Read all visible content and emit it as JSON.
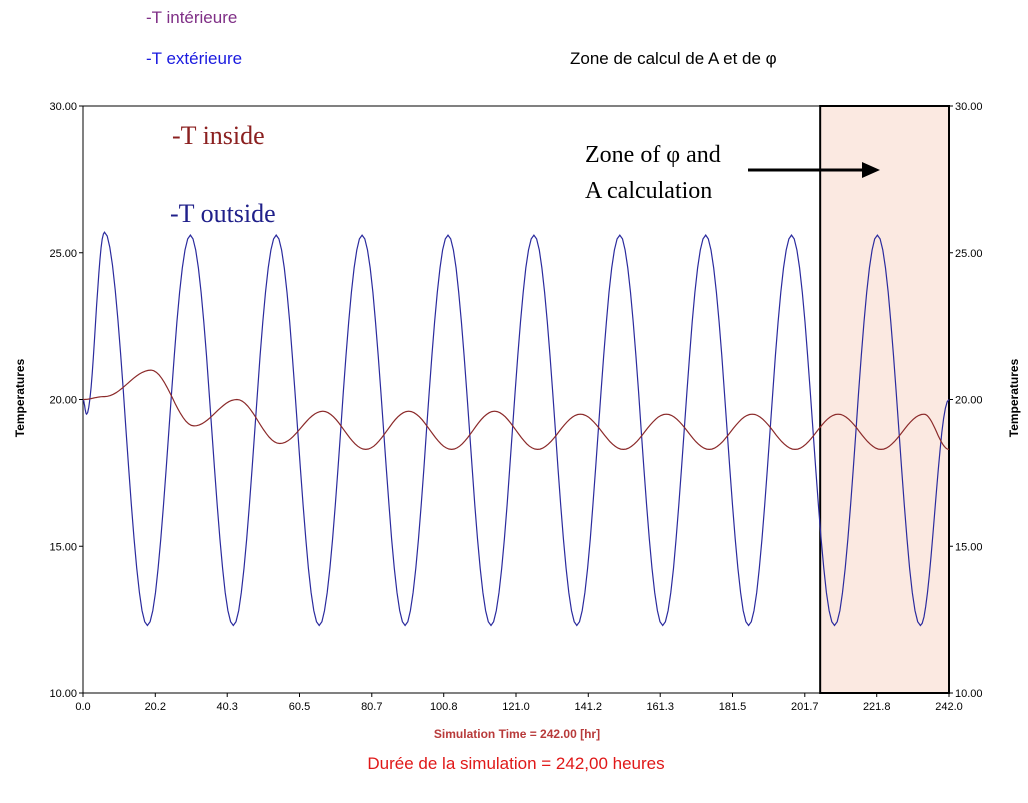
{
  "header": {
    "legend_inside_fr": "-T intérieure",
    "legend_outside_fr": "-T extérieure",
    "zone_label_fr": "Zone de calcul de A et de φ"
  },
  "footer": {
    "duration_fr": "Durée de la simulation = 242,00 heures"
  },
  "colors": {
    "inside": "#8b2a2a",
    "outside": "#2b2b9e",
    "zone_fill": "#fbe9e1",
    "legend_fr_inside": "#7f2f86",
    "legend_fr_outside": "#1a1adf",
    "xlabel": "#b83a3a"
  },
  "chart_data": {
    "type": "line",
    "title": "",
    "xlabel": "Simulation Time = 242.00 [hr]",
    "ylabel": "Temperatures",
    "ylabel_right": "Temperatures",
    "xlim": [
      0,
      242
    ],
    "ylim": [
      10,
      30
    ],
    "x_ticks": [
      "0.0",
      "20.2",
      "40.3",
      "60.5",
      "80.7",
      "100.8",
      "121.0",
      "141.2",
      "161.3",
      "181.5",
      "201.7",
      "221.8",
      "242.0"
    ],
    "y_ticks": [
      "10.00",
      "15.00",
      "20.00",
      "25.00",
      "30.00"
    ],
    "grid": false,
    "annotations": {
      "inside_label": "-T inside",
      "outside_label": "-T outside",
      "zone_line1": "Zone of  φ and",
      "zone_line2": "A calculation"
    },
    "zone": {
      "x_start": 206,
      "x_end": 242
    },
    "series": [
      {
        "name": "-T outside",
        "x": [
          0,
          1,
          6,
          18,
          30,
          42,
          54,
          66,
          78,
          90,
          102,
          114,
          126,
          138,
          150,
          162,
          174,
          186,
          198,
          210,
          222,
          234,
          242
        ],
        "values": [
          20,
          19.5,
          25.7,
          12.3,
          25.6,
          12.3,
          25.6,
          12.3,
          25.6,
          12.3,
          25.6,
          12.3,
          25.6,
          12.3,
          25.6,
          12.3,
          25.6,
          12.3,
          25.6,
          12.3,
          25.6,
          12.3,
          20.0
        ]
      },
      {
        "name": "-T inside",
        "x": [
          0,
          6,
          19,
          31,
          43,
          55,
          67,
          79,
          91,
          103,
          115,
          127,
          139,
          151,
          163,
          175,
          187,
          199,
          211,
          223,
          235,
          242
        ],
        "values": [
          20.0,
          20.1,
          21.0,
          19.1,
          20.0,
          18.5,
          19.6,
          18.3,
          19.6,
          18.3,
          19.6,
          18.3,
          19.5,
          18.3,
          19.5,
          18.3,
          19.5,
          18.3,
          19.5,
          18.3,
          19.5,
          18.3
        ]
      }
    ]
  }
}
